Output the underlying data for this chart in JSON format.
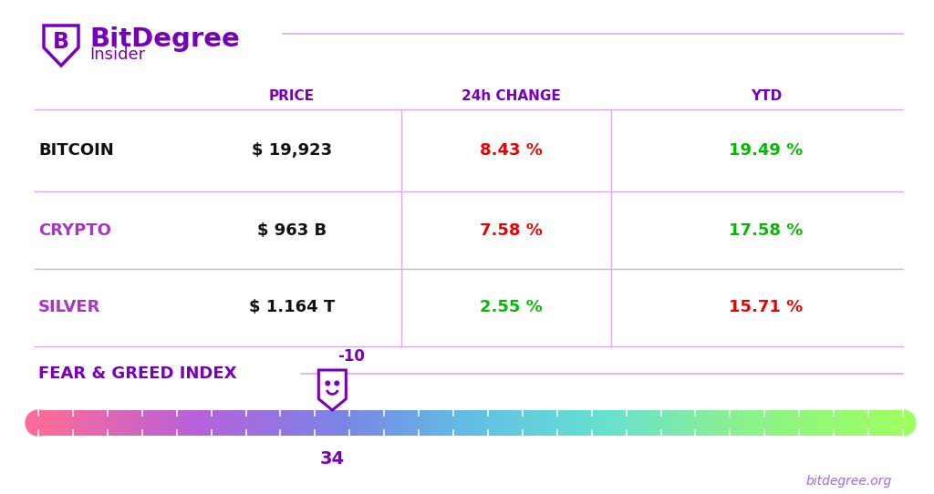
{
  "bg_color": "#ffffff",
  "purple_color": "#7700bb",
  "light_purple": "#ddaaee",
  "col_headers": [
    "PRICE",
    "24h CHANGE",
    "YTD"
  ],
  "rows": [
    {
      "label": "BITCOIN",
      "label_color": "#111111",
      "price": "$ 19,923",
      "change": "8.43 %",
      "change_color": "#ee0000",
      "ytd": "19.49 %",
      "ytd_color": "#00bb00"
    },
    {
      "label": "CRYPTO",
      "label_color": "#aa33cc",
      "price": "$ 963 B",
      "change": "7.58 %",
      "change_color": "#ee0000",
      "ytd": "17.58 %",
      "ytd_color": "#00bb00"
    },
    {
      "label": "SILVER",
      "label_color": "#aa33cc",
      "price": "$ 1.164 T",
      "change": "2.55 %",
      "change_color": "#00bb00",
      "ytd": "15.71 %",
      "ytd_color": "#ee0000"
    }
  ],
  "fear_greed_label": "FEAR & GREED INDEX",
  "fear_greed_value": 34,
  "fear_greed_offset_label": "-10",
  "footer_text": "bitdegree.org",
  "gradient_stops": [
    [
      0.0,
      [
        1.0,
        0.42,
        0.6
      ]
    ],
    [
      0.18,
      [
        0.72,
        0.38,
        0.85
      ]
    ],
    [
      0.35,
      [
        0.48,
        0.52,
        0.9
      ]
    ],
    [
      0.5,
      [
        0.38,
        0.75,
        0.9
      ]
    ],
    [
      0.65,
      [
        0.4,
        0.88,
        0.82
      ]
    ],
    [
      0.82,
      [
        0.55,
        0.95,
        0.55
      ]
    ],
    [
      1.0,
      [
        0.62,
        1.0,
        0.38
      ]
    ]
  ]
}
